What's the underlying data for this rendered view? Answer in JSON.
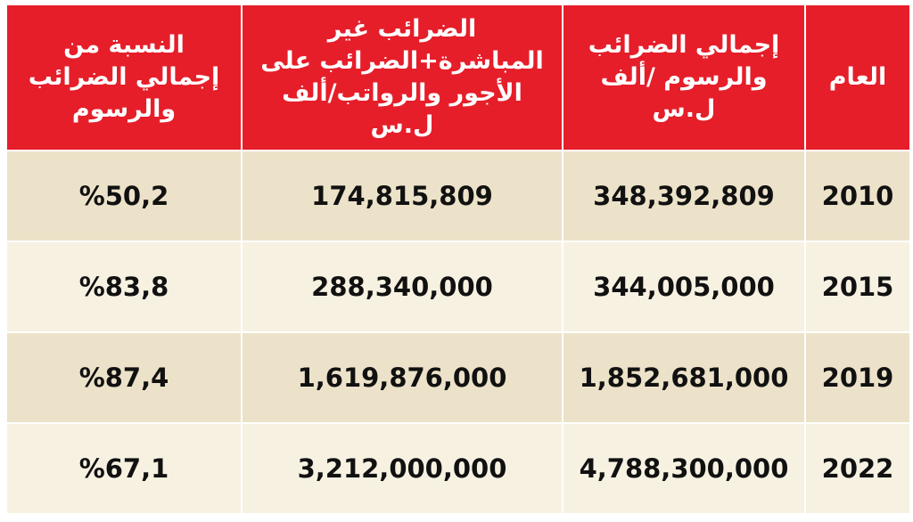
{
  "table": {
    "header": [
      "العام",
      "إجمالي الضرائب والرسوم /ألف ل.س",
      "الضرائب غير المباشرة+الضرائب على الأجور والرواتب/ألف ل.س",
      "النسبة من إجمالي الضرائب والرسوم"
    ],
    "rows": [
      [
        "2010",
        "348,392,809",
        "174,815,809",
        "%50,2"
      ],
      [
        "2015",
        "344,005,000",
        "288,340,000",
        "%83,8"
      ],
      [
        "2019",
        "1,852,681,000",
        "1,619,876,000",
        "%87,4"
      ],
      [
        "2022",
        "4,788,300,000",
        "3,212,000,000",
        "%67,1"
      ]
    ]
  }
}
